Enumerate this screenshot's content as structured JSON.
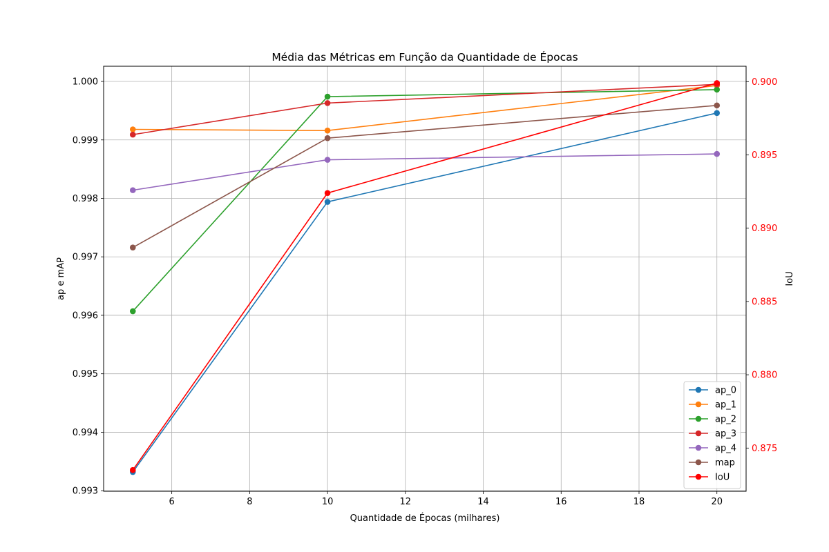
{
  "chart_data": {
    "type": "line",
    "title": "Média das Métricas em Função da Quantidade de Épocas",
    "xlabel": "Quantidade de Épocas (milhares)",
    "ylabel": "ap e mAP",
    "ylabel_right": "IoU",
    "x": [
      5,
      10,
      20
    ],
    "xlim": [
      4.25,
      20.75
    ],
    "ylim": [
      0.99299,
      1.00026
    ],
    "ylim_right": [
      0.87205,
      0.90105
    ],
    "x_ticks": [
      6,
      8,
      10,
      12,
      14,
      16,
      18,
      20
    ],
    "x_tick_labels": [
      "6",
      "8",
      "10",
      "12",
      "14",
      "16",
      "18",
      "20"
    ],
    "y_ticks": [
      0.993,
      0.994,
      0.995,
      0.996,
      0.997,
      0.998,
      0.999,
      1.0
    ],
    "y_tick_labels": [
      "0.993",
      "0.994",
      "0.995",
      "0.996",
      "0.997",
      "0.998",
      "0.999",
      "1.000"
    ],
    "y_ticks_right": [
      0.875,
      0.88,
      0.885,
      0.89,
      0.895,
      0.9
    ],
    "y_tick_labels_right": [
      "0.875",
      "0.880",
      "0.885",
      "0.890",
      "0.895",
      "0.900"
    ],
    "right_axis_color": "#ff0000",
    "grid": true,
    "legend_position": "lower-right",
    "series": [
      {
        "name": "ap_0",
        "axis": "left",
        "color": "#1f77b4",
        "values": [
          0.99332,
          0.99794,
          0.99946
        ]
      },
      {
        "name": "ap_1",
        "axis": "left",
        "color": "#ff7f0e",
        "values": [
          0.99918,
          0.99916,
          0.99993
        ]
      },
      {
        "name": "ap_2",
        "axis": "left",
        "color": "#2ca02c",
        "values": [
          0.99607,
          0.99974,
          0.99986
        ]
      },
      {
        "name": "ap_3",
        "axis": "left",
        "color": "#d62728",
        "values": [
          0.99909,
          0.99963,
          0.99995
        ]
      },
      {
        "name": "ap_4",
        "axis": "left",
        "color": "#9467bd",
        "values": [
          0.99814,
          0.99866,
          0.99876
        ]
      },
      {
        "name": "map",
        "axis": "left",
        "color": "#8c564b",
        "values": [
          0.99716,
          0.99903,
          0.99959
        ]
      },
      {
        "name": "IoU",
        "axis": "right",
        "color": "#ff0000",
        "values": [
          0.8735,
          0.8924,
          0.8999
        ]
      }
    ]
  }
}
